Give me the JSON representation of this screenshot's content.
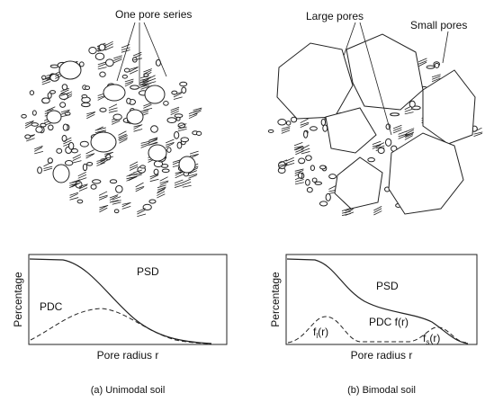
{
  "panels": [
    {
      "annotation": "One pore series",
      "y_label": "Percentage",
      "x_label": "Pore radius r",
      "psd_label": "PSD",
      "pdc_label": "PDC",
      "caption": "(a) Unimodal soil"
    },
    {
      "annotations": [
        "Large pores",
        "Small pores"
      ],
      "y_label": "Percentage",
      "x_label": "Pore radius r",
      "psd_label": "PSD",
      "pdc_label": "PDC f(r)",
      "component_labels": [
        {
          "base": "f",
          "sub": "l",
          "tail": "(r)"
        },
        {
          "base": "f",
          "sub": "s",
          "tail": "(r)"
        }
      ],
      "caption": "(b) Bimodal soil"
    }
  ]
}
